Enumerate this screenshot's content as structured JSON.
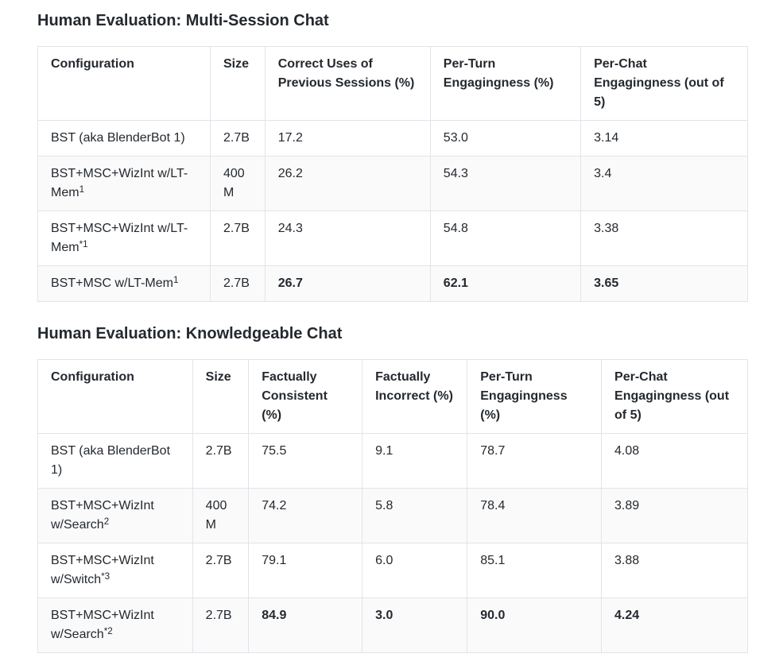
{
  "page": {
    "background": "#ffffff",
    "text_color": "#24292f",
    "border_color": "#e1e4e8",
    "stripe_color": "#fafafa"
  },
  "sections": [
    {
      "title": "Human Evaluation: Multi-Session Chat",
      "columns": [
        {
          "label": "Configuration",
          "width": "24.3%"
        },
        {
          "label": "Size",
          "width": "7.7%"
        },
        {
          "label": "Correct Uses of Previous Sessions (%)",
          "width": "23.3%"
        },
        {
          "label": "Per-Turn Engagingness (%)",
          "width": "21.2%"
        },
        {
          "label": "Per-Chat Engagingness (out of 5)",
          "width": "23.5%"
        }
      ],
      "rows": [
        {
          "cells": [
            {
              "text": "BST (aka BlenderBot 1)",
              "sup": "",
              "bold": false
            },
            {
              "text": "2.7B",
              "bold": false
            },
            {
              "text": "17.2",
              "bold": false
            },
            {
              "text": "53.0",
              "bold": false
            },
            {
              "text": "3.14",
              "bold": false
            }
          ]
        },
        {
          "cells": [
            {
              "text": "BST+MSC+WizInt w/LT-Mem",
              "sup": "1",
              "bold": false
            },
            {
              "text": "400M",
              "bold": false
            },
            {
              "text": "26.2",
              "bold": false
            },
            {
              "text": "54.3",
              "bold": false
            },
            {
              "text": "3.4",
              "bold": false
            }
          ]
        },
        {
          "cells": [
            {
              "text": "BST+MSC+WizInt w/LT-Mem",
              "sup": "*1",
              "bold": false
            },
            {
              "text": "2.7B",
              "bold": false
            },
            {
              "text": "24.3",
              "bold": false
            },
            {
              "text": "54.8",
              "bold": false
            },
            {
              "text": "3.38",
              "bold": false
            }
          ]
        },
        {
          "cells": [
            {
              "text": "BST+MSC w/LT-Mem",
              "sup": "1",
              "bold": false
            },
            {
              "text": "2.7B",
              "bold": false
            },
            {
              "text": "26.7",
              "bold": true
            },
            {
              "text": "62.1",
              "bold": true
            },
            {
              "text": "3.65",
              "bold": true
            }
          ]
        }
      ]
    },
    {
      "title": "Human Evaluation: Knowledgeable Chat",
      "columns": [
        {
          "label": "Configuration",
          "width": "21.8%"
        },
        {
          "label": "Size",
          "width": "7.9%"
        },
        {
          "label": "Factually Consistent (%)",
          "width": "16.0%"
        },
        {
          "label": "Factually Incorrect (%)",
          "width": "14.8%"
        },
        {
          "label": "Per-Turn Engagingness (%)",
          "width": "18.9%"
        },
        {
          "label": "Per-Chat Engagingness (out of 5)",
          "width": "20.6%"
        }
      ],
      "rows": [
        {
          "cells": [
            {
              "text": "BST (aka BlenderBot 1)",
              "sup": "",
              "bold": false
            },
            {
              "text": "2.7B",
              "bold": false
            },
            {
              "text": "75.5",
              "bold": false
            },
            {
              "text": "9.1",
              "bold": false
            },
            {
              "text": "78.7",
              "bold": false
            },
            {
              "text": "4.08",
              "bold": false
            }
          ]
        },
        {
          "cells": [
            {
              "text": "BST+MSC+WizInt w/Search",
              "sup": "2",
              "bold": false
            },
            {
              "text": "400M",
              "bold": false
            },
            {
              "text": "74.2",
              "bold": false
            },
            {
              "text": "5.8",
              "bold": false
            },
            {
              "text": "78.4",
              "bold": false
            },
            {
              "text": "3.89",
              "bold": false
            }
          ]
        },
        {
          "cells": [
            {
              "text": "BST+MSC+WizInt w/Switch",
              "sup": "*3",
              "bold": false
            },
            {
              "text": "2.7B",
              "bold": false
            },
            {
              "text": "79.1",
              "bold": false
            },
            {
              "text": "6.0",
              "bold": false
            },
            {
              "text": "85.1",
              "bold": false
            },
            {
              "text": "3.88",
              "bold": false
            }
          ]
        },
        {
          "cells": [
            {
              "text": "BST+MSC+WizInt w/Search",
              "sup": "*2",
              "bold": false
            },
            {
              "text": "2.7B",
              "bold": false
            },
            {
              "text": "84.9",
              "bold": true
            },
            {
              "text": "3.0",
              "bold": true
            },
            {
              "text": "90.0",
              "bold": true
            },
            {
              "text": "4.24",
              "bold": true
            }
          ]
        }
      ]
    }
  ]
}
